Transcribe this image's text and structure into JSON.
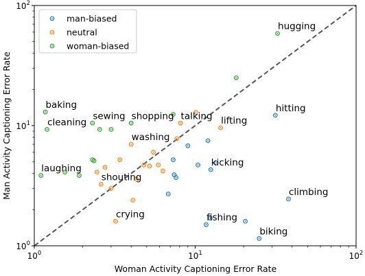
{
  "chart_data": {
    "type": "scatter",
    "title": "",
    "xlabel": "Woman Activity Captioning Error Rate",
    "ylabel": "Man Activity Captioning Error Rate",
    "xscale": "log",
    "yscale": "log",
    "xlim": [
      1,
      100
    ],
    "ylim": [
      1,
      100
    ],
    "x_ticks": [
      {
        "value": 1,
        "base": "10",
        "exp": "0"
      },
      {
        "value": 10,
        "base": "10",
        "exp": "1"
      },
      {
        "value": 100,
        "base": "10",
        "exp": "2"
      }
    ],
    "y_ticks": [
      {
        "value": 1,
        "base": "10",
        "exp": "0"
      },
      {
        "value": 10,
        "base": "10",
        "exp": "1"
      },
      {
        "value": 100,
        "base": "10",
        "exp": "2"
      }
    ],
    "grid": false,
    "legend_position": "top-left",
    "reference_line": {
      "style": "dashed",
      "color": "#555555",
      "from": [
        1,
        1
      ],
      "to": [
        100,
        100
      ]
    },
    "series": [
      {
        "name": "man-biased",
        "color": "#1f77b4",
        "points": [
          {
            "x": 6.8,
            "y": 2.7
          },
          {
            "x": 7.3,
            "y": 5.2
          },
          {
            "x": 7.4,
            "y": 3.9
          },
          {
            "x": 7.6,
            "y": 3.7
          },
          {
            "x": 9.0,
            "y": 6.8
          },
          {
            "x": 10.4,
            "y": 4.7
          },
          {
            "x": 12.0,
            "y": 7.5
          },
          {
            "x": 12.5,
            "y": 4.3
          },
          {
            "x": 13.5,
            "y": 4.9
          },
          {
            "x": 11.7,
            "y": 1.5
          },
          {
            "x": 12.4,
            "y": 1.7
          },
          {
            "x": 20.5,
            "y": 1.6
          },
          {
            "x": 25.0,
            "y": 1.15
          },
          {
            "x": 31.5,
            "y": 12.2
          },
          {
            "x": 38.0,
            "y": 2.45
          }
        ]
      },
      {
        "name": "neutral",
        "color": "#ff7f0e",
        "points": [
          {
            "x": 2.45,
            "y": 4.1
          },
          {
            "x": 2.6,
            "y": 3.25
          },
          {
            "x": 2.75,
            "y": 4.5
          },
          {
            "x": 3.0,
            "y": 3.0
          },
          {
            "x": 3.4,
            "y": 5.2
          },
          {
            "x": 3.2,
            "y": 1.6
          },
          {
            "x": 4.0,
            "y": 7.0
          },
          {
            "x": 4.1,
            "y": 2.4
          },
          {
            "x": 4.3,
            "y": 3.6
          },
          {
            "x": 4.8,
            "y": 4.7
          },
          {
            "x": 5.2,
            "y": 4.6
          },
          {
            "x": 5.5,
            "y": 6.0
          },
          {
            "x": 5.9,
            "y": 4.7
          },
          {
            "x": 6.3,
            "y": 4.2
          },
          {
            "x": 7.7,
            "y": 7.8
          },
          {
            "x": 8.1,
            "y": 10.5
          },
          {
            "x": 10.1,
            "y": 12.9
          },
          {
            "x": 14.4,
            "y": 9.6
          }
        ]
      },
      {
        "name": "woman-biased",
        "color": "#2ca02c",
        "points": [
          {
            "x": 1.1,
            "y": 3.85
          },
          {
            "x": 1.17,
            "y": 13.0
          },
          {
            "x": 1.2,
            "y": 9.3
          },
          {
            "x": 1.55,
            "y": 4.1
          },
          {
            "x": 1.9,
            "y": 3.85
          },
          {
            "x": 2.3,
            "y": 10.5
          },
          {
            "x": 2.3,
            "y": 5.2
          },
          {
            "x": 2.35,
            "y": 5.1
          },
          {
            "x": 2.55,
            "y": 9.3
          },
          {
            "x": 3.0,
            "y": 9.3
          },
          {
            "x": 4.0,
            "y": 10.5
          },
          {
            "x": 7.3,
            "y": 12.4
          },
          {
            "x": 18.0,
            "y": 25.0
          },
          {
            "x": 32.5,
            "y": 58.5
          }
        ]
      }
    ],
    "annotations": [
      {
        "text": "hugging",
        "x": 32.5,
        "y": 58.5
      },
      {
        "text": "baking",
        "x": 1.17,
        "y": 13.0
      },
      {
        "text": "cleaning",
        "x": 1.2,
        "y": 9.3
      },
      {
        "text": "sewing",
        "x": 2.3,
        "y": 10.5
      },
      {
        "text": "shopping",
        "x": 4.0,
        "y": 10.5
      },
      {
        "text": "talking",
        "x": 8.1,
        "y": 10.5
      },
      {
        "text": "lifting",
        "x": 14.4,
        "y": 9.6
      },
      {
        "text": "hitting",
        "x": 31.5,
        "y": 12.2
      },
      {
        "text": "washing",
        "x": 4.0,
        "y": 7.0
      },
      {
        "text": "kicking",
        "x": 12.5,
        "y": 4.3
      },
      {
        "text": "laughing",
        "x": 1.1,
        "y": 3.85
      },
      {
        "text": "shouting",
        "x": 2.6,
        "y": 3.25
      },
      {
        "text": "climbing",
        "x": 38.0,
        "y": 2.45
      },
      {
        "text": "crying",
        "x": 3.2,
        "y": 1.6
      },
      {
        "text": "fishing",
        "x": 11.7,
        "y": 1.5
      },
      {
        "text": "biking",
        "x": 25.0,
        "y": 1.15
      }
    ]
  }
}
